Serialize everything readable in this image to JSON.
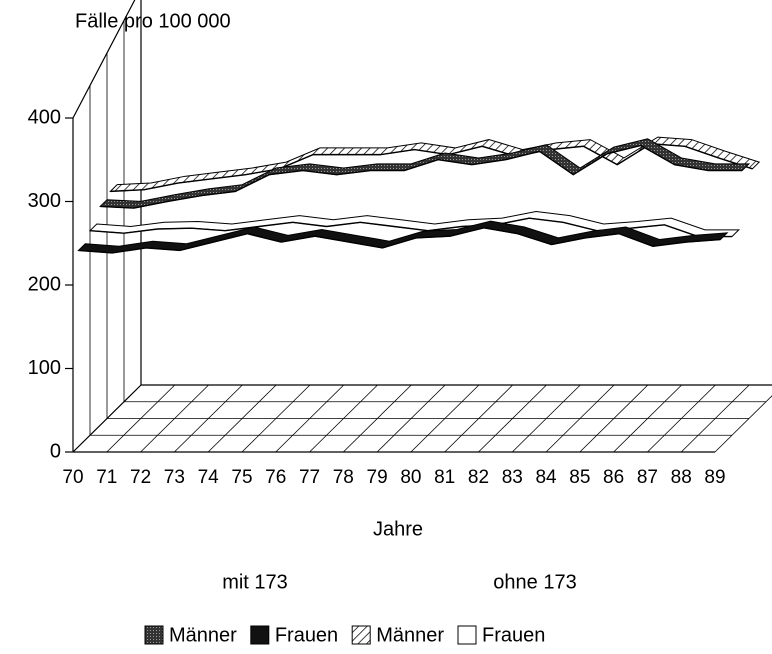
{
  "chart_data": {
    "type": "line3d",
    "ylabel": "Fälle pro 100 000",
    "xlabel": "Jahre",
    "groups": [
      "mit 173",
      "ohne 173"
    ],
    "categories": [
      "70",
      "71",
      "72",
      "73",
      "74",
      "75",
      "76",
      "77",
      "78",
      "79",
      "80",
      "81",
      "82",
      "83",
      "84",
      "85",
      "86",
      "87",
      "88",
      "89"
    ],
    "ylim": [
      0,
      400
    ],
    "yticks": [
      0,
      100,
      200,
      300,
      400
    ],
    "series": [
      {
        "name": "Männer",
        "color": "#555555",
        "values": [
          262,
          260,
          268,
          275,
          280,
          300,
          305,
          300,
          305,
          305,
          318,
          312,
          318,
          328,
          300,
          325,
          335,
          312,
          305,
          305
        ]
      },
      {
        "name": "Frauen",
        "color": "#111111",
        "values": [
          235,
          232,
          238,
          235,
          245,
          255,
          245,
          252,
          245,
          238,
          250,
          252,
          262,
          255,
          242,
          250,
          255,
          240,
          245,
          248
        ]
      },
      {
        "name": "Männer",
        "color": "#ffffff",
        "fill_style": "hatch",
        "values": [
          268,
          270,
          278,
          283,
          288,
          295,
          312,
          312,
          312,
          318,
          312,
          322,
          310,
          318,
          322,
          300,
          325,
          322,
          308,
          295
        ]
      },
      {
        "name": "Frauen",
        "color": "#ffffff",
        "values": [
          245,
          242,
          247,
          248,
          245,
          250,
          255,
          250,
          255,
          250,
          245,
          250,
          252,
          260,
          255,
          245,
          248,
          252,
          238,
          238
        ]
      }
    ]
  }
}
